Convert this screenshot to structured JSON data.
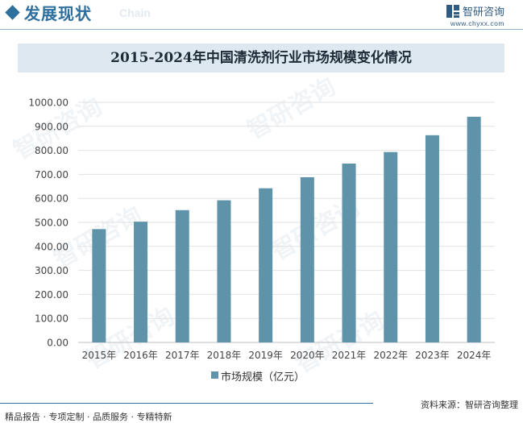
{
  "header": {
    "title": "发展现状",
    "subtitle": "Chain",
    "brand_name": "智研咨询",
    "brand_url": "www.chyxx.com",
    "accent_color": "#2f6f9e"
  },
  "watermark": {
    "text": "智研咨询"
  },
  "chart_data": {
    "type": "bar",
    "title": "2015-2024年中国清洗剂行业市场规模变化情况",
    "categories": [
      "2015年",
      "2016年",
      "2017年",
      "2018年",
      "2019年",
      "2020年",
      "2021年",
      "2022年",
      "2023年",
      "2024年"
    ],
    "series": [
      {
        "name": "市场规模（亿元）",
        "values": [
          472,
          503,
          551,
          592,
          642,
          688,
          745,
          793,
          863,
          940
        ],
        "color": "#5f93a9"
      }
    ],
    "y_ticks": [
      "0.00",
      "100.00",
      "200.00",
      "300.00",
      "400.00",
      "500.00",
      "600.00",
      "700.00",
      "800.00",
      "900.00",
      "1000.00"
    ],
    "ylim": [
      0,
      1000
    ],
    "xlabel": "",
    "ylabel": "",
    "grid": true,
    "legend_position": "bottom"
  },
  "footer": {
    "tags": "精品报告 · 专项定制 · 品质服务 · 专精特新",
    "source": "资料来源：智研咨询整理"
  }
}
